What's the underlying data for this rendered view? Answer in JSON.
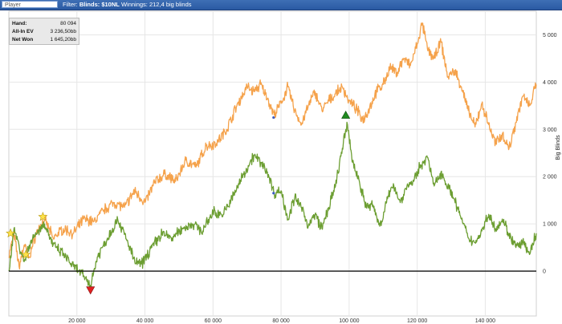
{
  "header": {
    "player_placeholder": "Player",
    "filter_prefix": "Filter:",
    "filter_value": "Blinds: $10NL",
    "winnings": "Winnings: 212,4 big blinds"
  },
  "stats": [
    {
      "label": "Hand:",
      "value": "80 094"
    },
    {
      "label": "All-In EV",
      "value": "3 236,50bb"
    },
    {
      "label": "Net Won",
      "value": "1 645,20bb"
    }
  ],
  "colors": {
    "all_in_ev": "#f5a24b",
    "net_won": "#6c9e32",
    "zero_line": "#111111",
    "grid": "#e6e6e6"
  },
  "chart_data": {
    "type": "line",
    "xlabel": "",
    "ylabel": "Big Blinds",
    "xlim": [
      0,
      155000
    ],
    "ylim": [
      -950,
      5500
    ],
    "x_ticks": [
      20000,
      40000,
      60000,
      80000,
      100000,
      120000,
      140000
    ],
    "x_tick_labels": [
      "20 000",
      "40 000",
      "60 000",
      "80 000",
      "100 000",
      "120 000",
      "140 000"
    ],
    "y_ticks": [
      0,
      1000,
      2000,
      3000,
      4000,
      5000
    ],
    "y_tick_labels": [
      "0",
      "1 000",
      "2 000",
      "3 000",
      "4 000",
      "5 000"
    ],
    "grid": true,
    "series": [
      {
        "key": "all_in_ev",
        "x": [
          0,
          1500,
          3000,
          4500,
          6000,
          8000,
          10500,
          13000,
          16000,
          19000,
          22000,
          25000,
          28000,
          31000,
          34000,
          37000,
          40000,
          43000,
          46000,
          49000,
          52000,
          55000,
          58000,
          61000,
          64000,
          67000,
          70000,
          72000,
          74000,
          76000,
          78000,
          80000,
          82000,
          84000,
          86000,
          88000,
          90000,
          92000,
          94000,
          96000,
          98000,
          100000,
          102000,
          104000,
          106000,
          108000,
          110000,
          112000,
          114000,
          116000,
          118000,
          120000,
          121500,
          123000,
          125000,
          127000,
          129000,
          131000,
          133000,
          135000,
          137000,
          139000,
          141000,
          143000,
          145000,
          147000,
          149000,
          151000,
          153000,
          155000
        ],
        "y": [
          300,
          800,
          100,
          550,
          300,
          800,
          1100,
          700,
          900,
          800,
          1100,
          1050,
          1300,
          1450,
          1350,
          1700,
          1450,
          1900,
          2050,
          1900,
          2350,
          2200,
          2650,
          2700,
          3000,
          3500,
          3900,
          3800,
          3950,
          3650,
          3300,
          3550,
          3900,
          3400,
          3100,
          3500,
          3800,
          3400,
          3600,
          3750,
          3900,
          3600,
          3450,
          3200,
          3450,
          3800,
          3950,
          4300,
          4200,
          4500,
          4350,
          4800,
          5250,
          4700,
          4500,
          4850,
          4100,
          4250,
          3900,
          3400,
          3050,
          3550,
          3100,
          2700,
          2900,
          2600,
          3150,
          3700,
          3500,
          3950
        ]
      },
      {
        "key": "net_won",
        "x": [
          0,
          1500,
          3000,
          4500,
          6000,
          8000,
          10500,
          13000,
          16000,
          19000,
          22000,
          24000,
          26000,
          29000,
          32000,
          35000,
          37000,
          39000,
          42000,
          45000,
          48000,
          51000,
          54000,
          57000,
          60000,
          63000,
          66000,
          69000,
          72000,
          74000,
          76000,
          78000,
          80000,
          82000,
          84000,
          86000,
          88000,
          90000,
          92000,
          94000,
          96000,
          98000,
          99500,
          101000,
          103000,
          105000,
          107000,
          109000,
          111000,
          113000,
          115000,
          117000,
          119000,
          121000,
          123000,
          125000,
          127000,
          129000,
          131000,
          133000,
          135000,
          137000,
          139000,
          141000,
          143000,
          145000,
          147000,
          149000,
          151000,
          153000,
          155000
        ],
        "y": [
          0,
          900,
          550,
          200,
          550,
          800,
          1000,
          550,
          350,
          100,
          -100,
          -300,
          300,
          700,
          1100,
          600,
          200,
          150,
          500,
          800,
          700,
          900,
          1000,
          850,
          1250,
          1200,
          1600,
          2050,
          2450,
          2300,
          2100,
          1650,
          1700,
          1100,
          1550,
          1350,
          950,
          1200,
          900,
          1350,
          1800,
          2600,
          3100,
          2300,
          1900,
          1350,
          1400,
          950,
          1450,
          1850,
          1450,
          1800,
          1900,
          2250,
          2400,
          1800,
          2100,
          1800,
          1500,
          1100,
          700,
          600,
          850,
          1200,
          900,
          1100,
          800,
          500,
          600,
          350,
          800
        ]
      }
    ],
    "markers": [
      {
        "shape": "star",
        "color": "#ffe24a",
        "x": 500,
        "y": 800
      },
      {
        "shape": "star",
        "color": "#ffe24a",
        "x": 5000,
        "y": 350
      },
      {
        "shape": "star",
        "color": "#ffe24a",
        "x": 10000,
        "y": 1150
      },
      {
        "shape": "triangle-down",
        "color": "#e02020",
        "x": 24000,
        "y": -400
      },
      {
        "shape": "triangle-up",
        "color": "#1f8a1f",
        "x": 99000,
        "y": 3300
      },
      {
        "shape": "dot",
        "color": "#3b5bc4",
        "x": 77800,
        "y": 3250
      },
      {
        "shape": "dot",
        "color": "#3b5bc4",
        "x": 77800,
        "y": 1650
      }
    ]
  }
}
